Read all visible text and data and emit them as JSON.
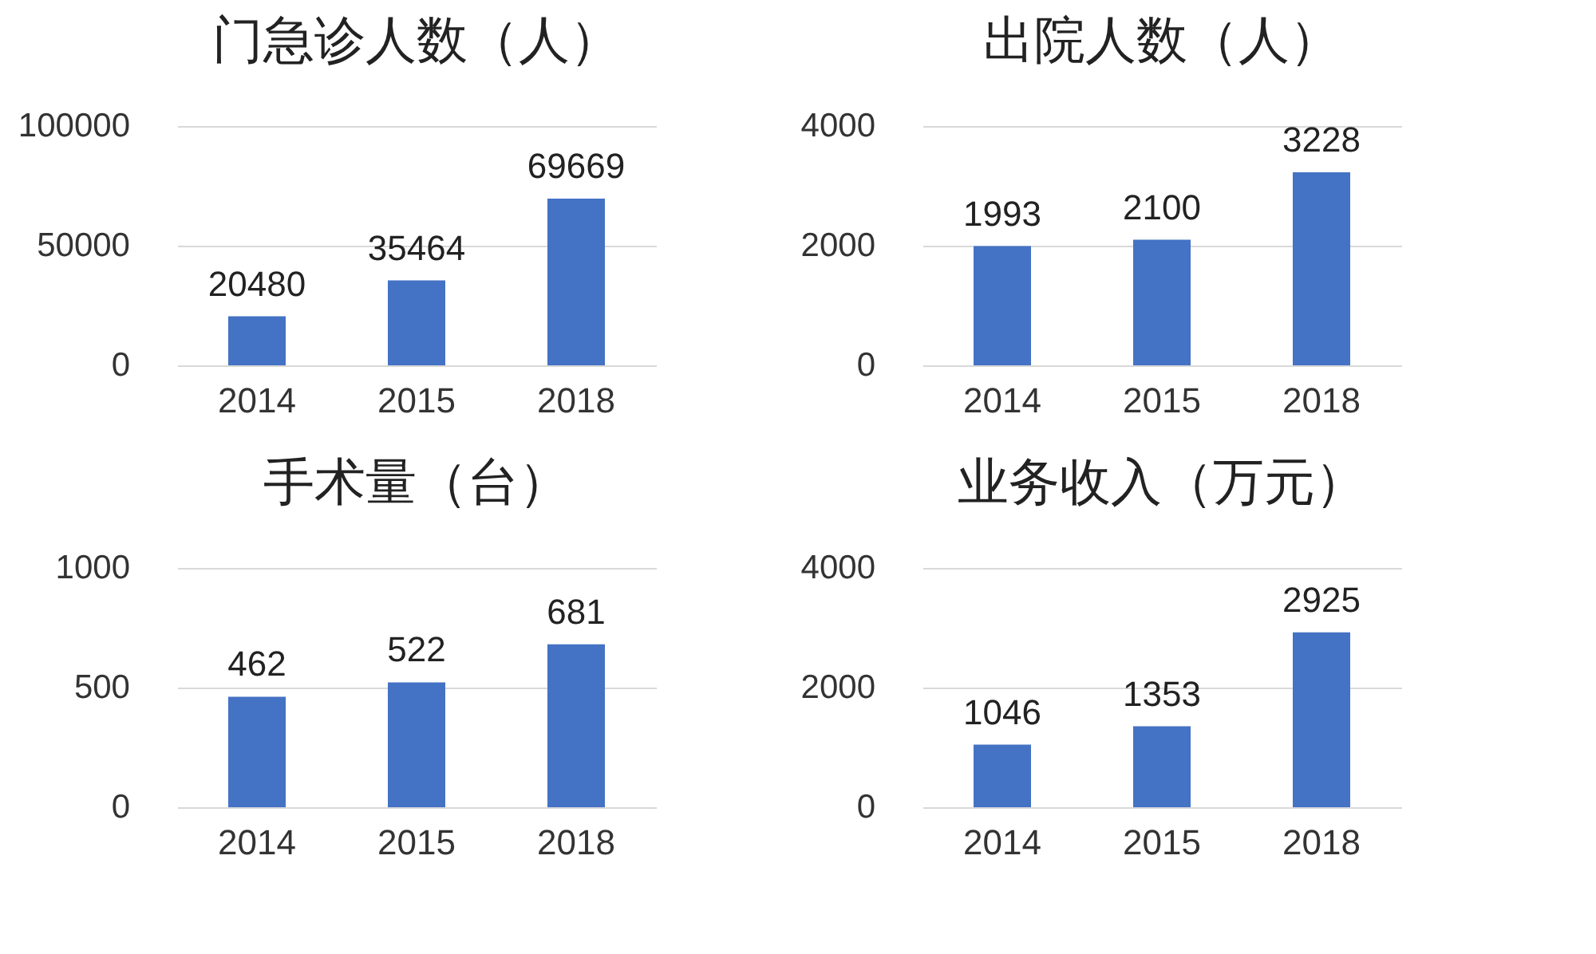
{
  "chart_data": [
    {
      "type": "bar",
      "title": "门急诊人数（人）",
      "categories": [
        "2014",
        "2015",
        "2018"
      ],
      "values": [
        20480,
        35464,
        69669
      ],
      "color": "#4472c4",
      "ylim": [
        0,
        100000
      ],
      "yticks": [
        0,
        50000,
        100000
      ],
      "grid": "y",
      "data_labels": true
    },
    {
      "type": "bar",
      "title": "出院人数（人）",
      "categories": [
        "2014",
        "2015",
        "2018"
      ],
      "values": [
        1993,
        2100,
        3228
      ],
      "color": "#4472c4",
      "ylim": [
        0,
        4000
      ],
      "yticks": [
        0,
        2000,
        4000
      ],
      "grid": "y",
      "data_labels": true
    },
    {
      "type": "bar",
      "title": "手术量（台）",
      "categories": [
        "2014",
        "2015",
        "2018"
      ],
      "values": [
        462,
        522,
        681
      ],
      "color": "#4472c4",
      "ylim": [
        0,
        1000
      ],
      "yticks": [
        0,
        500,
        1000
      ],
      "grid": "y",
      "data_labels": true
    },
    {
      "type": "bar",
      "title": "业务收入（万元）",
      "categories": [
        "2014",
        "2015",
        "2018"
      ],
      "values": [
        1046,
        1353,
        2925
      ],
      "color": "#4472c4",
      "ylim": [
        0,
        4000
      ],
      "yticks": [
        0,
        2000,
        4000
      ],
      "grid": "y",
      "data_labels": true
    }
  ]
}
